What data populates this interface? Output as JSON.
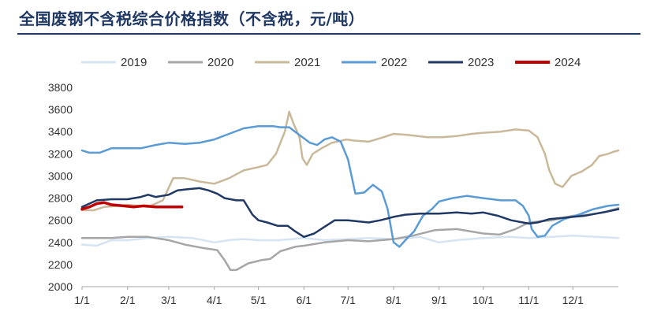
{
  "title": "全国废钢不含税综合价格指数（不含税，元/吨）",
  "chart_data": {
    "type": "line",
    "title": "全国废钢不含税综合价格指数（不含税，元/吨）",
    "xlabel": "",
    "ylabel": "",
    "ylim": [
      2000,
      3800
    ],
    "yticks": [
      2000,
      2200,
      2400,
      2600,
      2800,
      3000,
      3200,
      3400,
      3600,
      3800
    ],
    "x_unit": "day-of-year",
    "x_range": [
      0,
      365
    ],
    "xtick_labels": [
      "1/1",
      "2/1",
      "3/1",
      "4/1",
      "5/1",
      "6/1",
      "7/1",
      "8/1",
      "9/1",
      "10/1",
      "11/1",
      "12/1"
    ],
    "xtick_days": [
      0,
      31,
      59,
      90,
      120,
      151,
      181,
      212,
      243,
      273,
      304,
      334
    ],
    "grid": false,
    "legend_position": "top",
    "series": [
      {
        "name": "2019",
        "color": "#d6e3f3",
        "points": [
          [
            0,
            2380
          ],
          [
            10,
            2370
          ],
          [
            20,
            2420
          ],
          [
            31,
            2420
          ],
          [
            45,
            2440
          ],
          [
            59,
            2450
          ],
          [
            75,
            2440
          ],
          [
            90,
            2400
          ],
          [
            100,
            2420
          ],
          [
            110,
            2430
          ],
          [
            120,
            2420
          ],
          [
            135,
            2420
          ],
          [
            151,
            2440
          ],
          [
            165,
            2420
          ],
          [
            181,
            2430
          ],
          [
            195,
            2440
          ],
          [
            212,
            2430
          ],
          [
            230,
            2450
          ],
          [
            243,
            2400
          ],
          [
            255,
            2420
          ],
          [
            273,
            2440
          ],
          [
            290,
            2450
          ],
          [
            304,
            2440
          ],
          [
            320,
            2450
          ],
          [
            334,
            2460
          ],
          [
            350,
            2450
          ],
          [
            365,
            2440
          ]
        ]
      },
      {
        "name": "2020",
        "color": "#a6a6a6",
        "points": [
          [
            0,
            2440
          ],
          [
            20,
            2440
          ],
          [
            31,
            2450
          ],
          [
            45,
            2450
          ],
          [
            59,
            2420
          ],
          [
            70,
            2380
          ],
          [
            82,
            2350
          ],
          [
            92,
            2330
          ],
          [
            97,
            2240
          ],
          [
            101,
            2150
          ],
          [
            105,
            2150
          ],
          [
            113,
            2210
          ],
          [
            122,
            2240
          ],
          [
            128,
            2250
          ],
          [
            135,
            2320
          ],
          [
            145,
            2360
          ],
          [
            151,
            2370
          ],
          [
            165,
            2400
          ],
          [
            181,
            2420
          ],
          [
            195,
            2410
          ],
          [
            212,
            2430
          ],
          [
            225,
            2460
          ],
          [
            240,
            2510
          ],
          [
            255,
            2520
          ],
          [
            273,
            2480
          ],
          [
            284,
            2470
          ],
          [
            295,
            2520
          ],
          [
            304,
            2580
          ],
          [
            320,
            2600
          ],
          [
            334,
            2640
          ],
          [
            345,
            2650
          ],
          [
            355,
            2670
          ],
          [
            365,
            2710
          ]
        ]
      },
      {
        "name": "2021",
        "color": "#c9b99a",
        "points": [
          [
            0,
            2690
          ],
          [
            8,
            2690
          ],
          [
            15,
            2720
          ],
          [
            25,
            2730
          ],
          [
            31,
            2740
          ],
          [
            45,
            2720
          ],
          [
            55,
            2780
          ],
          [
            62,
            2980
          ],
          [
            70,
            2980
          ],
          [
            80,
            2950
          ],
          [
            90,
            2930
          ],
          [
            100,
            2980
          ],
          [
            110,
            3050
          ],
          [
            120,
            3080
          ],
          [
            126,
            3100
          ],
          [
            132,
            3200
          ],
          [
            138,
            3400
          ],
          [
            141,
            3580
          ],
          [
            144,
            3470
          ],
          [
            148,
            3350
          ],
          [
            150,
            3160
          ],
          [
            153,
            3100
          ],
          [
            157,
            3200
          ],
          [
            163,
            3250
          ],
          [
            170,
            3300
          ],
          [
            180,
            3330
          ],
          [
            185,
            3320
          ],
          [
            195,
            3310
          ],
          [
            205,
            3350
          ],
          [
            212,
            3380
          ],
          [
            222,
            3370
          ],
          [
            235,
            3350
          ],
          [
            245,
            3350
          ],
          [
            255,
            3360
          ],
          [
            265,
            3380
          ],
          [
            273,
            3390
          ],
          [
            285,
            3400
          ],
          [
            295,
            3420
          ],
          [
            304,
            3410
          ],
          [
            310,
            3350
          ],
          [
            315,
            3200
          ],
          [
            318,
            3050
          ],
          [
            322,
            2930
          ],
          [
            327,
            2900
          ],
          [
            333,
            3000
          ],
          [
            340,
            3040
          ],
          [
            347,
            3100
          ],
          [
            352,
            3180
          ],
          [
            358,
            3200
          ],
          [
            362,
            3220
          ],
          [
            365,
            3230
          ]
        ]
      },
      {
        "name": "2022",
        "color": "#5b9bd5",
        "points": [
          [
            0,
            3230
          ],
          [
            5,
            3210
          ],
          [
            12,
            3210
          ],
          [
            20,
            3250
          ],
          [
            31,
            3250
          ],
          [
            40,
            3250
          ],
          [
            50,
            3280
          ],
          [
            59,
            3300
          ],
          [
            70,
            3290
          ],
          [
            80,
            3300
          ],
          [
            90,
            3330
          ],
          [
            100,
            3380
          ],
          [
            110,
            3430
          ],
          [
            120,
            3450
          ],
          [
            130,
            3450
          ],
          [
            135,
            3440
          ],
          [
            141,
            3440
          ],
          [
            145,
            3400
          ],
          [
            150,
            3350
          ],
          [
            155,
            3300
          ],
          [
            160,
            3280
          ],
          [
            165,
            3330
          ],
          [
            170,
            3350
          ],
          [
            176,
            3310
          ],
          [
            181,
            3150
          ],
          [
            186,
            2840
          ],
          [
            192,
            2850
          ],
          [
            198,
            2920
          ],
          [
            204,
            2860
          ],
          [
            208,
            2700
          ],
          [
            212,
            2400
          ],
          [
            216,
            2360
          ],
          [
            220,
            2420
          ],
          [
            226,
            2500
          ],
          [
            232,
            2640
          ],
          [
            238,
            2700
          ],
          [
            243,
            2770
          ],
          [
            252,
            2800
          ],
          [
            262,
            2820
          ],
          [
            273,
            2800
          ],
          [
            285,
            2780
          ],
          [
            295,
            2780
          ],
          [
            300,
            2730
          ],
          [
            304,
            2640
          ],
          [
            306,
            2520
          ],
          [
            310,
            2450
          ],
          [
            315,
            2460
          ],
          [
            320,
            2550
          ],
          [
            328,
            2610
          ],
          [
            338,
            2650
          ],
          [
            348,
            2700
          ],
          [
            358,
            2730
          ],
          [
            365,
            2740
          ]
        ]
      },
      {
        "name": "2023",
        "color": "#1f3864",
        "points": [
          [
            0,
            2720
          ],
          [
            10,
            2780
          ],
          [
            20,
            2790
          ],
          [
            31,
            2790
          ],
          [
            40,
            2810
          ],
          [
            45,
            2830
          ],
          [
            50,
            2810
          ],
          [
            59,
            2830
          ],
          [
            65,
            2870
          ],
          [
            72,
            2880
          ],
          [
            80,
            2890
          ],
          [
            86,
            2870
          ],
          [
            92,
            2840
          ],
          [
            97,
            2800
          ],
          [
            105,
            2780
          ],
          [
            110,
            2780
          ],
          [
            116,
            2650
          ],
          [
            120,
            2600
          ],
          [
            126,
            2580
          ],
          [
            133,
            2550
          ],
          [
            140,
            2550
          ],
          [
            145,
            2500
          ],
          [
            151,
            2450
          ],
          [
            158,
            2480
          ],
          [
            165,
            2540
          ],
          [
            172,
            2600
          ],
          [
            181,
            2600
          ],
          [
            188,
            2590
          ],
          [
            195,
            2580
          ],
          [
            203,
            2600
          ],
          [
            212,
            2630
          ],
          [
            220,
            2650
          ],
          [
            230,
            2660
          ],
          [
            243,
            2660
          ],
          [
            255,
            2670
          ],
          [
            265,
            2660
          ],
          [
            273,
            2670
          ],
          [
            283,
            2640
          ],
          [
            292,
            2600
          ],
          [
            300,
            2580
          ],
          [
            304,
            2570
          ],
          [
            310,
            2580
          ],
          [
            318,
            2610
          ],
          [
            326,
            2620
          ],
          [
            334,
            2630
          ],
          [
            342,
            2640
          ],
          [
            350,
            2660
          ],
          [
            358,
            2680
          ],
          [
            365,
            2700
          ]
        ]
      },
      {
        "name": "2024",
        "color": "#c00000",
        "points": [
          [
            0,
            2700
          ],
          [
            5,
            2720
          ],
          [
            10,
            2750
          ],
          [
            15,
            2760
          ],
          [
            20,
            2740
          ],
          [
            28,
            2730
          ],
          [
            35,
            2720
          ],
          [
            42,
            2730
          ],
          [
            50,
            2720
          ],
          [
            58,
            2720
          ],
          [
            65,
            2720
          ],
          [
            68,
            2720
          ]
        ]
      }
    ]
  }
}
